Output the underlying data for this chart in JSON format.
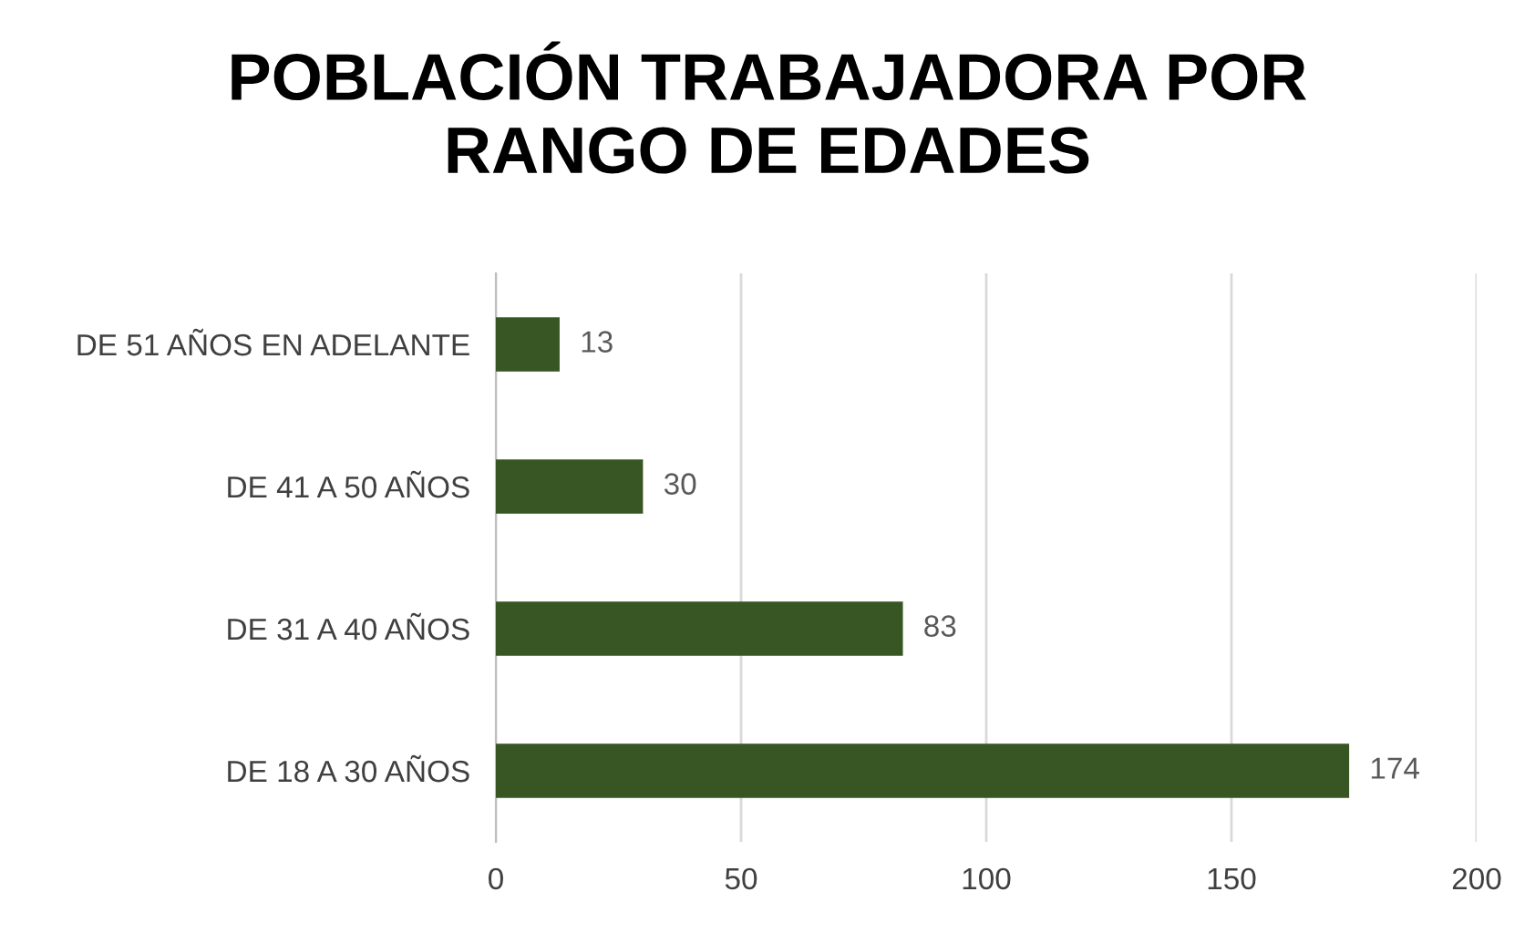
{
  "chart_data": {
    "type": "bar",
    "orientation": "horizontal",
    "title": "POBLACIÓN TRABAJADORA POR\nRANGO DE EDADES",
    "categories": [
      "DE 51 AÑOS EN ADELANTE",
      "DE 41 A 50 AÑOS",
      "DE 31 A 40 AÑOS",
      "DE 18 A 30 AÑOS"
    ],
    "values": [
      13,
      30,
      83,
      174
    ],
    "color": "#375623",
    "xlim": [
      0,
      200
    ],
    "xticks": [
      0,
      50,
      100,
      150,
      200
    ],
    "grid": "x",
    "data_labels": true
  }
}
